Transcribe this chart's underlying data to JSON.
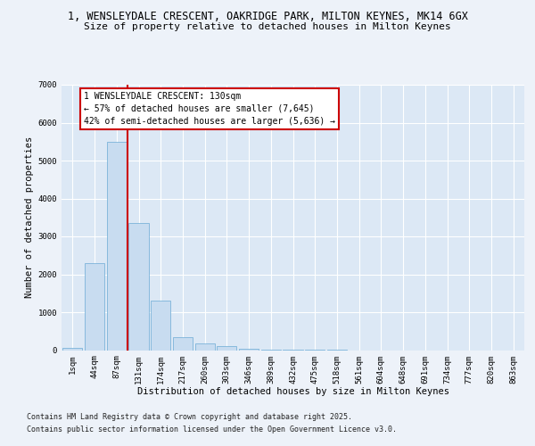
{
  "title_line1": "1, WENSLEYDALE CRESCENT, OAKRIDGE PARK, MILTON KEYNES, MK14 6GX",
  "title_line2": "Size of property relative to detached houses in Milton Keynes",
  "xlabel": "Distribution of detached houses by size in Milton Keynes",
  "ylabel": "Number of detached properties",
  "categories": [
    "1sqm",
    "44sqm",
    "87sqm",
    "131sqm",
    "174sqm",
    "217sqm",
    "260sqm",
    "303sqm",
    "346sqm",
    "389sqm",
    "432sqm",
    "475sqm",
    "518sqm",
    "561sqm",
    "604sqm",
    "648sqm",
    "691sqm",
    "734sqm",
    "777sqm",
    "820sqm",
    "863sqm"
  ],
  "values": [
    70,
    2300,
    5500,
    3350,
    1300,
    350,
    175,
    100,
    35,
    12,
    5,
    2,
    1,
    0,
    0,
    0,
    0,
    0,
    0,
    0,
    0
  ],
  "bar_color": "#c8dcf0",
  "bar_edge_color": "#6aaad4",
  "vline_x": 2.5,
  "vline_color": "#cc0000",
  "annotation_line1": "1 WENSLEYDALE CRESCENT: 130sqm",
  "annotation_line2": "← 57% of detached houses are smaller (7,645)",
  "annotation_line3": "42% of semi-detached houses are larger (5,636) →",
  "annotation_box_edgecolor": "#cc0000",
  "ylim": [
    0,
    7000
  ],
  "yticks": [
    0,
    1000,
    2000,
    3000,
    4000,
    5000,
    6000,
    7000
  ],
  "background_color": "#edf2f9",
  "plot_bg_color": "#dce8f5",
  "grid_color": "#ffffff",
  "footer_line1": "Contains HM Land Registry data © Crown copyright and database right 2025.",
  "footer_line2": "Contains public sector information licensed under the Open Government Licence v3.0.",
  "title_fontsize": 8.5,
  "subtitle_fontsize": 8,
  "axis_label_fontsize": 7.5,
  "tick_fontsize": 6.5,
  "annotation_fontsize": 7,
  "footer_fontsize": 6
}
